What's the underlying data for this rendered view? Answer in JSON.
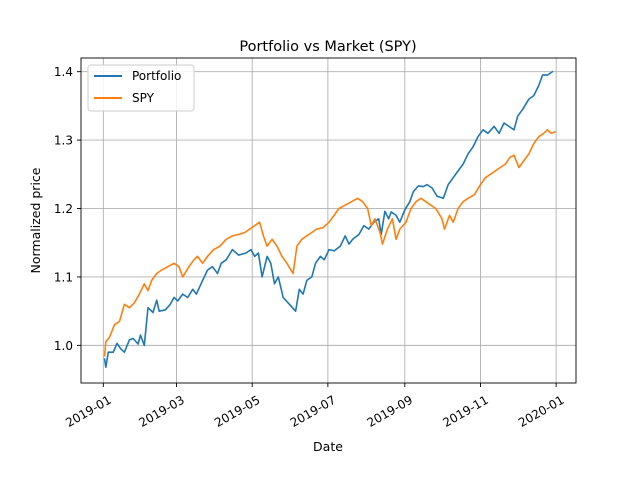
{
  "chart_data": {
    "type": "line",
    "title": "Portfolio vs Market (SPY)",
    "xlabel": "Date",
    "ylabel": "Normalized price",
    "xlim": [
      "2018-12-14",
      "2020-01-17"
    ],
    "ylim": [
      0.945,
      1.42
    ],
    "grid": true,
    "legend_position": "upper-left",
    "x_ticks": [
      "2019-01",
      "2019-03",
      "2019-05",
      "2019-07",
      "2019-09",
      "2019-11",
      "2020-01"
    ],
    "y_ticks": [
      "1.0",
      "1.1",
      "1.2",
      "1.3",
      "1.4"
    ],
    "series": [
      {
        "name": "Portfolio",
        "color": "#1f77b4",
        "points": [
          [
            "2019-01-02",
            0.98
          ],
          [
            "2019-01-03",
            0.968
          ],
          [
            "2019-01-05",
            0.99
          ],
          [
            "2019-01-09",
            0.99
          ],
          [
            "2019-01-12",
            1.003
          ],
          [
            "2019-01-15",
            0.995
          ],
          [
            "2019-01-18",
            0.99
          ],
          [
            "2019-01-22",
            1.008
          ],
          [
            "2019-01-25",
            1.01
          ],
          [
            "2019-01-29",
            1.002
          ],
          [
            "2019-01-31",
            1.015
          ],
          [
            "2019-02-03",
            1.0
          ],
          [
            "2019-02-06",
            1.055
          ],
          [
            "2019-02-10",
            1.048
          ],
          [
            "2019-02-13",
            1.066
          ],
          [
            "2019-02-15",
            1.05
          ],
          [
            "2019-02-20",
            1.052
          ],
          [
            "2019-02-24",
            1.06
          ],
          [
            "2019-02-27",
            1.07
          ],
          [
            "2019-03-02",
            1.065
          ],
          [
            "2019-03-06",
            1.075
          ],
          [
            "2019-03-10",
            1.07
          ],
          [
            "2019-03-14",
            1.082
          ],
          [
            "2019-03-17",
            1.075
          ],
          [
            "2019-03-22",
            1.095
          ],
          [
            "2019-03-26",
            1.11
          ],
          [
            "2019-03-30",
            1.115
          ],
          [
            "2019-04-03",
            1.105
          ],
          [
            "2019-04-06",
            1.12
          ],
          [
            "2019-04-10",
            1.125
          ],
          [
            "2019-04-15",
            1.14
          ],
          [
            "2019-04-20",
            1.132
          ],
          [
            "2019-04-26",
            1.135
          ],
          [
            "2019-04-30",
            1.14
          ],
          [
            "2019-05-03",
            1.13
          ],
          [
            "2019-05-06",
            1.135
          ],
          [
            "2019-05-09",
            1.1
          ],
          [
            "2019-05-13",
            1.13
          ],
          [
            "2019-05-16",
            1.12
          ],
          [
            "2019-05-19",
            1.09
          ],
          [
            "2019-05-22",
            1.1
          ],
          [
            "2019-05-26",
            1.07
          ],
          [
            "2019-05-31",
            1.06
          ],
          [
            "2019-06-05",
            1.05
          ],
          [
            "2019-06-08",
            1.082
          ],
          [
            "2019-06-11",
            1.075
          ],
          [
            "2019-06-14",
            1.095
          ],
          [
            "2019-06-18",
            1.1
          ],
          [
            "2019-06-21",
            1.12
          ],
          [
            "2019-06-25",
            1.13
          ],
          [
            "2019-06-28",
            1.125
          ],
          [
            "2019-07-02",
            1.14
          ],
          [
            "2019-07-06",
            1.138
          ],
          [
            "2019-07-11",
            1.145
          ],
          [
            "2019-07-15",
            1.16
          ],
          [
            "2019-07-18",
            1.148
          ],
          [
            "2019-07-21",
            1.155
          ],
          [
            "2019-07-26",
            1.162
          ],
          [
            "2019-07-30",
            1.175
          ],
          [
            "2019-08-03",
            1.17
          ],
          [
            "2019-08-07",
            1.18
          ],
          [
            "2019-08-11",
            1.185
          ],
          [
            "2019-08-13",
            1.162
          ],
          [
            "2019-08-16",
            1.196
          ],
          [
            "2019-08-19",
            1.185
          ],
          [
            "2019-08-21",
            1.195
          ],
          [
            "2019-08-25",
            1.19
          ],
          [
            "2019-08-28",
            1.18
          ],
          [
            "2019-09-01",
            1.198
          ],
          [
            "2019-09-05",
            1.21
          ],
          [
            "2019-09-08",
            1.225
          ],
          [
            "2019-09-12",
            1.233
          ],
          [
            "2019-09-16",
            1.232
          ],
          [
            "2019-09-19",
            1.235
          ],
          [
            "2019-09-23",
            1.23
          ],
          [
            "2019-09-27",
            1.218
          ],
          [
            "2019-10-02",
            1.215
          ],
          [
            "2019-10-06",
            1.235
          ],
          [
            "2019-10-10",
            1.245
          ],
          [
            "2019-10-14",
            1.255
          ],
          [
            "2019-10-18",
            1.265
          ],
          [
            "2019-10-22",
            1.28
          ],
          [
            "2019-10-26",
            1.29
          ],
          [
            "2019-10-30",
            1.305
          ],
          [
            "2019-11-03",
            1.315
          ],
          [
            "2019-11-07",
            1.31
          ],
          [
            "2019-11-12",
            1.32
          ],
          [
            "2019-11-16",
            1.31
          ],
          [
            "2019-11-20",
            1.325
          ],
          [
            "2019-11-24",
            1.32
          ],
          [
            "2019-11-28",
            1.315
          ],
          [
            "2019-12-01",
            1.335
          ],
          [
            "2019-12-05",
            1.345
          ],
          [
            "2019-12-10",
            1.36
          ],
          [
            "2019-12-14",
            1.365
          ],
          [
            "2019-12-18",
            1.38
          ],
          [
            "2019-12-21",
            1.395
          ],
          [
            "2019-12-25",
            1.395
          ],
          [
            "2019-12-29",
            1.4
          ]
        ]
      },
      {
        "name": "SPY",
        "color": "#ff7f0e",
        "points": [
          [
            "2019-01-02",
            0.985
          ],
          [
            "2019-01-03",
            1.005
          ],
          [
            "2019-01-06",
            1.012
          ],
          [
            "2019-01-10",
            1.03
          ],
          [
            "2019-01-14",
            1.035
          ],
          [
            "2019-01-18",
            1.06
          ],
          [
            "2019-01-22",
            1.055
          ],
          [
            "2019-01-26",
            1.062
          ],
          [
            "2019-01-30",
            1.075
          ],
          [
            "2019-02-03",
            1.09
          ],
          [
            "2019-02-06",
            1.08
          ],
          [
            "2019-02-09",
            1.095
          ],
          [
            "2019-02-13",
            1.105
          ],
          [
            "2019-02-17",
            1.11
          ],
          [
            "2019-02-22",
            1.115
          ],
          [
            "2019-02-27",
            1.12
          ],
          [
            "2019-03-03",
            1.115
          ],
          [
            "2019-03-06",
            1.1
          ],
          [
            "2019-03-11",
            1.115
          ],
          [
            "2019-03-15",
            1.125
          ],
          [
            "2019-03-18",
            1.13
          ],
          [
            "2019-03-22",
            1.12
          ],
          [
            "2019-03-26",
            1.13
          ],
          [
            "2019-03-31",
            1.14
          ],
          [
            "2019-04-05",
            1.145
          ],
          [
            "2019-04-10",
            1.155
          ],
          [
            "2019-04-15",
            1.16
          ],
          [
            "2019-04-20",
            1.162
          ],
          [
            "2019-04-25",
            1.165
          ],
          [
            "2019-04-29",
            1.17
          ],
          [
            "2019-05-03",
            1.175
          ],
          [
            "2019-05-07",
            1.18
          ],
          [
            "2019-05-10",
            1.16
          ],
          [
            "2019-05-13",
            1.145
          ],
          [
            "2019-05-17",
            1.155
          ],
          [
            "2019-05-21",
            1.145
          ],
          [
            "2019-05-25",
            1.13
          ],
          [
            "2019-05-29",
            1.12
          ],
          [
            "2019-06-03",
            1.105
          ],
          [
            "2019-06-06",
            1.145
          ],
          [
            "2019-06-10",
            1.155
          ],
          [
            "2019-06-14",
            1.16
          ],
          [
            "2019-06-18",
            1.165
          ],
          [
            "2019-06-22",
            1.17
          ],
          [
            "2019-06-27",
            1.172
          ],
          [
            "2019-07-02",
            1.18
          ],
          [
            "2019-07-06",
            1.19
          ],
          [
            "2019-07-10",
            1.2
          ],
          [
            "2019-07-15",
            1.205
          ],
          [
            "2019-07-20",
            1.21
          ],
          [
            "2019-07-25",
            1.215
          ],
          [
            "2019-07-29",
            1.21
          ],
          [
            "2019-08-02",
            1.2
          ],
          [
            "2019-08-05",
            1.175
          ],
          [
            "2019-08-08",
            1.185
          ],
          [
            "2019-08-12",
            1.165
          ],
          [
            "2019-08-14",
            1.148
          ],
          [
            "2019-08-18",
            1.17
          ],
          [
            "2019-08-22",
            1.185
          ],
          [
            "2019-08-25",
            1.155
          ],
          [
            "2019-08-28",
            1.17
          ],
          [
            "2019-09-02",
            1.18
          ],
          [
            "2019-09-06",
            1.2
          ],
          [
            "2019-09-10",
            1.21
          ],
          [
            "2019-09-14",
            1.215
          ],
          [
            "2019-09-18",
            1.21
          ],
          [
            "2019-09-22",
            1.205
          ],
          [
            "2019-09-26",
            1.2
          ],
          [
            "2019-10-01",
            1.185
          ],
          [
            "2019-10-03",
            1.17
          ],
          [
            "2019-10-07",
            1.19
          ],
          [
            "2019-10-10",
            1.18
          ],
          [
            "2019-10-14",
            1.2
          ],
          [
            "2019-10-18",
            1.21
          ],
          [
            "2019-10-22",
            1.215
          ],
          [
            "2019-10-27",
            1.22
          ],
          [
            "2019-11-01",
            1.235
          ],
          [
            "2019-11-05",
            1.245
          ],
          [
            "2019-11-09",
            1.25
          ],
          [
            "2019-11-13",
            1.255
          ],
          [
            "2019-11-17",
            1.26
          ],
          [
            "2019-11-21",
            1.265
          ],
          [
            "2019-11-25",
            1.275
          ],
          [
            "2019-11-28",
            1.278
          ],
          [
            "2019-12-02",
            1.26
          ],
          [
            "2019-12-06",
            1.27
          ],
          [
            "2019-12-10",
            1.28
          ],
          [
            "2019-12-14",
            1.295
          ],
          [
            "2019-12-18",
            1.305
          ],
          [
            "2019-12-22",
            1.31
          ],
          [
            "2019-12-25",
            1.315
          ],
          [
            "2019-12-28",
            1.31
          ],
          [
            "2019-12-31",
            1.312
          ]
        ]
      }
    ]
  }
}
